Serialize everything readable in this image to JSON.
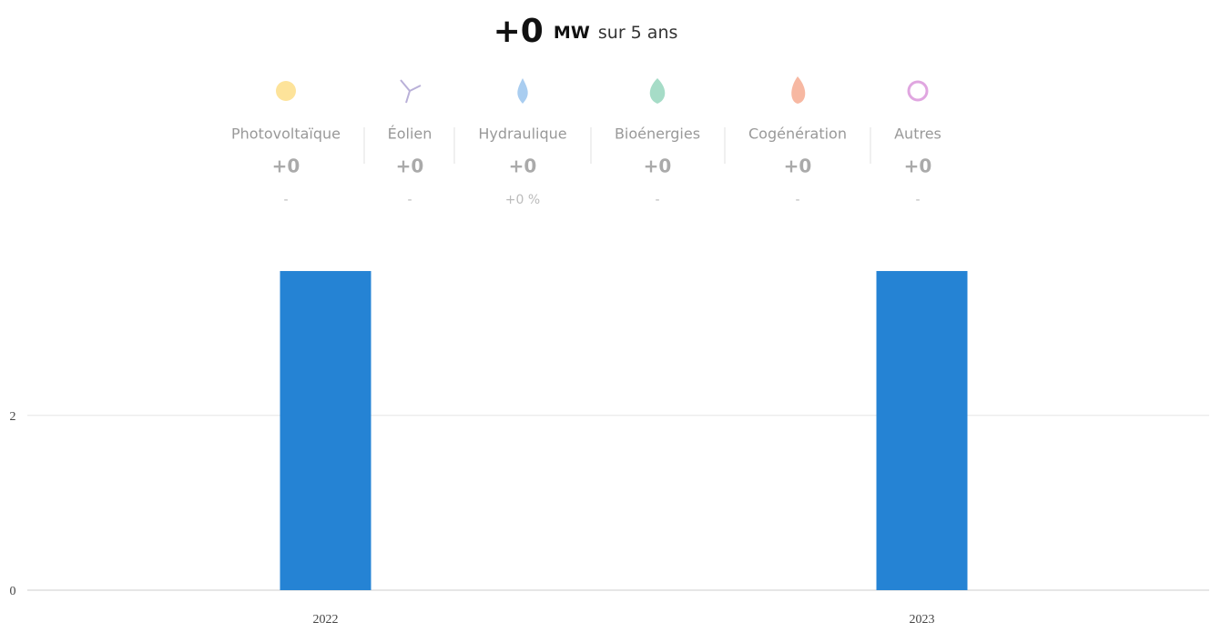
{
  "header": {
    "total": "+0",
    "unit": "MW",
    "period": "sur 5 ans"
  },
  "sectors": [
    {
      "name": "Photovoltaïque",
      "value": "+0",
      "change": "-"
    },
    {
      "name": "Éolien",
      "value": "+0",
      "change": "-"
    },
    {
      "name": "Hydraulique",
      "value": "+0",
      "change": "+0 %"
    },
    {
      "name": "Bioénergies",
      "value": "+0",
      "change": "-"
    },
    {
      "name": "Cogénération",
      "value": "+0",
      "change": "-"
    },
    {
      "name": "Autres",
      "value": "+0",
      "change": "-"
    }
  ],
  "chart_data": {
    "type": "bar",
    "categories": [
      "2022",
      "2023"
    ],
    "values": [
      3.65,
      3.65
    ],
    "color": "#2583d4",
    "ylim": [
      0,
      3.9
    ],
    "yticks": [
      0,
      2
    ],
    "grid": true
  }
}
